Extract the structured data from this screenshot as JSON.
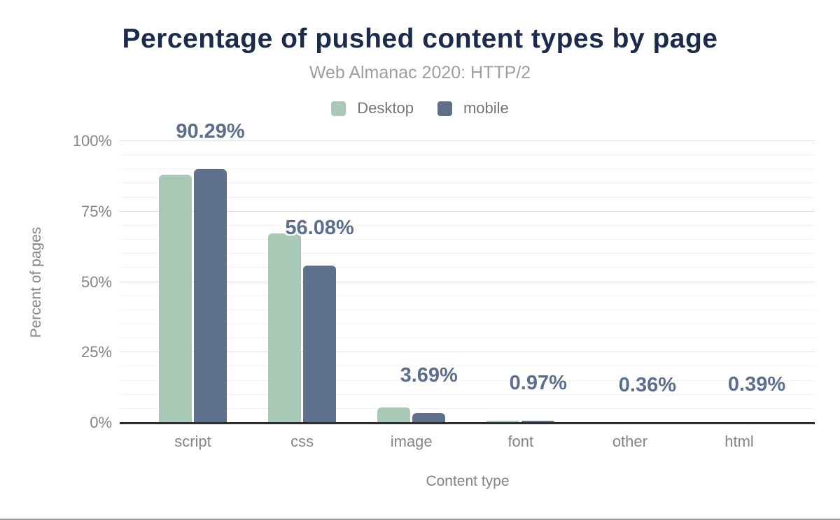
{
  "chart_data": {
    "type": "bar",
    "title": "Percentage of pushed content types by page",
    "subtitle": "Web Almanac 2020: HTTP/2",
    "xlabel": "Content type",
    "ylabel": "Percent of pages",
    "categories": [
      "script",
      "css",
      "image",
      "font",
      "other",
      "html"
    ],
    "series": [
      {
        "name": "Desktop",
        "color": "#a9c9b7",
        "values": [
          88.4,
          67.5,
          5.6,
          1.0,
          0.5,
          0.5
        ]
      },
      {
        "name": "mobile",
        "color": "#5e708c",
        "values": [
          90.29,
          56.08,
          3.69,
          0.97,
          0.36,
          0.39
        ]
      }
    ],
    "bar_labels": [
      "90.29%",
      "56.08%",
      "3.69%",
      "0.97%",
      "0.36%",
      "0.39%"
    ],
    "ylim": [
      0,
      100
    ],
    "yticks": [
      {
        "value": 0,
        "label": "0%"
      },
      {
        "value": 25,
        "label": "25%"
      },
      {
        "value": 50,
        "label": "50%"
      },
      {
        "value": 75,
        "label": "75%"
      },
      {
        "value": 100,
        "label": "100%"
      }
    ],
    "minor_gridline_step": 5,
    "grid": true,
    "legend_position": "top"
  },
  "colors": {
    "title": "#1c2b4a",
    "subtitle": "#9e9e9e",
    "axis_text": "#858585",
    "legend_text": "#757575",
    "bar_label": "#5b6e8e",
    "axis_line": "#2e2e2e",
    "major_gridline": "#dedede",
    "minor_gridline": "#f3f3f3",
    "desktop_series": "#a9c9b7",
    "mobile_series": "#5e708c",
    "page_bottom_border": "#9a9a9a"
  }
}
